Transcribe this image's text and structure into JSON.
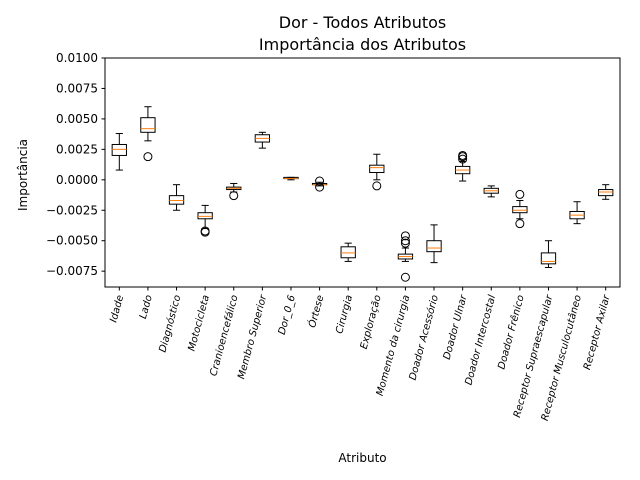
{
  "chart_data": {
    "type": "boxplot",
    "title": "Dor - Todos Atributos",
    "subtitle": "Importância dos Atributos",
    "xlabel": "Atributo",
    "ylabel": "Importância",
    "ylim": [
      -0.0088,
      0.01
    ],
    "yticks": [
      0.01,
      0.0075,
      0.005,
      0.0025,
      0.0,
      -0.0025,
      -0.005,
      -0.0075
    ],
    "ytick_labels": [
      "0.0100",
      "0.0075",
      "0.0050",
      "0.0025",
      "0.0000",
      "−0.0025",
      "−0.0050",
      "−0.0075"
    ],
    "grid": false,
    "box_color": "#000000",
    "median_color": "#ff7f0e",
    "categories": [
      "Idade",
      "Lado",
      "Diagnóstico",
      "Motocicleta",
      "Cranioencefálico",
      "Membro Superior",
      "Dor_0_6",
      "Órtese",
      "Cirurgia",
      "Exploração",
      "Momento da cirurgia",
      "Doador Acessório",
      "Doador Ulnar",
      "Doador Intercostal",
      "Doador Frênico",
      "Receptor Supraescapular",
      "Receptor Musculocutâneo",
      "Receptor Axilar"
    ],
    "boxes": [
      {
        "whislo": 0.0008,
        "q1": 0.002,
        "med": 0.0025,
        "q3": 0.0029,
        "whishi": 0.0038,
        "fliers": []
      },
      {
        "whislo": 0.0032,
        "q1": 0.0039,
        "med": 0.0042,
        "q3": 0.0051,
        "whishi": 0.006,
        "fliers": [
          0.0019
        ]
      },
      {
        "whislo": -0.0025,
        "q1": -0.002,
        "med": -0.0017,
        "q3": -0.0013,
        "whishi": -0.0004,
        "fliers": []
      },
      {
        "whislo": -0.004,
        "q1": -0.0032,
        "med": -0.003,
        "q3": -0.0027,
        "whishi": -0.0021,
        "fliers": [
          -0.0042,
          -0.0043
        ]
      },
      {
        "whislo": -0.001,
        "q1": -0.0008,
        "med": -0.0007,
        "q3": -0.0006,
        "whishi": -0.0003,
        "fliers": [
          -0.0013
        ]
      },
      {
        "whislo": 0.0026,
        "q1": 0.0031,
        "med": 0.0034,
        "q3": 0.0037,
        "whishi": 0.0039,
        "fliers": []
      },
      {
        "whislo": 0.0,
        "q1": 0.0001,
        "med": 0.0001,
        "q3": 0.0002,
        "whishi": 0.0002,
        "fliers": []
      },
      {
        "whislo": -0.0005,
        "q1": -0.0004,
        "med": -0.0004,
        "q3": -0.0003,
        "whishi": -0.0002,
        "fliers": [
          -0.0001,
          -0.0006
        ]
      },
      {
        "whislo": -0.0067,
        "q1": -0.0064,
        "med": -0.006,
        "q3": -0.0055,
        "whishi": -0.0052,
        "fliers": []
      },
      {
        "whislo": 0.0,
        "q1": 0.0006,
        "med": 0.001,
        "q3": 0.0012,
        "whishi": 0.0021,
        "fliers": [
          -0.0005
        ]
      },
      {
        "whislo": -0.0067,
        "q1": -0.0065,
        "med": -0.0063,
        "q3": -0.0061,
        "whishi": -0.0056,
        "fliers": [
          -0.0046,
          -0.005,
          -0.0052,
          -0.008
        ]
      },
      {
        "whislo": -0.0068,
        "q1": -0.0059,
        "med": -0.0056,
        "q3": -0.005,
        "whishi": -0.0037,
        "fliers": []
      },
      {
        "whislo": -0.0001,
        "q1": 0.0005,
        "med": 0.0008,
        "q3": 0.0011,
        "whishi": 0.0015,
        "fliers": [
          0.0017,
          0.0019,
          0.002
        ]
      },
      {
        "whislo": -0.0014,
        "q1": -0.0011,
        "med": -0.0009,
        "q3": -0.0007,
        "whishi": -0.0005,
        "fliers": []
      },
      {
        "whislo": -0.0032,
        "q1": -0.0027,
        "med": -0.0025,
        "q3": -0.0022,
        "whishi": -0.0017,
        "fliers": [
          -0.0012,
          -0.0036
        ]
      },
      {
        "whislo": -0.0072,
        "q1": -0.0069,
        "med": -0.0067,
        "q3": -0.006,
        "whishi": -0.005,
        "fliers": []
      },
      {
        "whislo": -0.0036,
        "q1": -0.0032,
        "med": -0.0029,
        "q3": -0.0026,
        "whishi": -0.0018,
        "fliers": []
      },
      {
        "whislo": -0.0016,
        "q1": -0.0013,
        "med": -0.001,
        "q3": -0.0008,
        "whishi": -0.0004,
        "fliers": []
      }
    ]
  }
}
